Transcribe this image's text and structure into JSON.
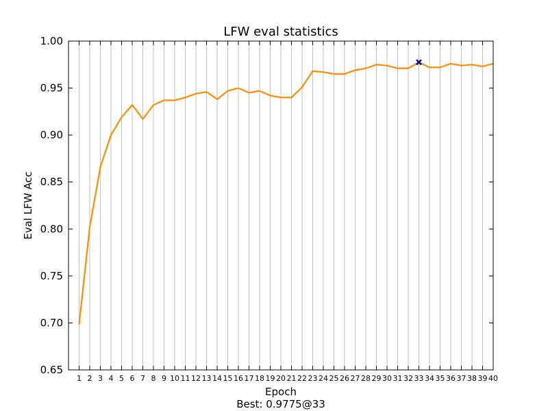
{
  "chart_data": {
    "type": "line",
    "title": "LFW eval statistics",
    "xlabel": "Epoch",
    "ylabel": "Eval LFW Acc",
    "footer": "Best: 0.9775@33",
    "xlim": [
      0.0,
      40.0
    ],
    "ylim": [
      0.65,
      1.0
    ],
    "yticks": [
      0.65,
      0.7,
      0.75,
      0.8,
      0.85,
      0.9,
      0.95,
      1.0
    ],
    "ytick_labels": [
      "0.65",
      "0.70",
      "0.75",
      "0.80",
      "0.85",
      "0.90",
      "0.95",
      "1.00"
    ],
    "x": [
      1,
      2,
      3,
      4,
      5,
      6,
      7,
      8,
      9,
      10,
      11,
      12,
      13,
      14,
      15,
      16,
      17,
      18,
      19,
      20,
      21,
      22,
      23,
      24,
      25,
      26,
      27,
      28,
      29,
      30,
      31,
      32,
      33,
      34,
      35,
      36,
      37,
      38,
      39,
      40
    ],
    "series": [
      {
        "values": [
          0.698,
          0.802,
          0.866,
          0.9,
          0.919,
          0.932,
          0.917,
          0.932,
          0.937,
          0.937,
          0.94,
          0.944,
          0.946,
          0.938,
          0.947,
          0.95,
          0.945,
          0.947,
          0.942,
          0.94,
          0.94,
          0.951,
          0.968,
          0.967,
          0.965,
          0.965,
          0.969,
          0.971,
          0.975,
          0.974,
          0.971,
          0.971,
          0.9775,
          0.972,
          0.972,
          0.976,
          0.974,
          0.975,
          0.973,
          0.976
        ],
        "color": "#ff8c00"
      }
    ],
    "best": {
      "x": 33,
      "y": 0.9775,
      "color": "#00008b"
    },
    "grid": "vertical"
  }
}
